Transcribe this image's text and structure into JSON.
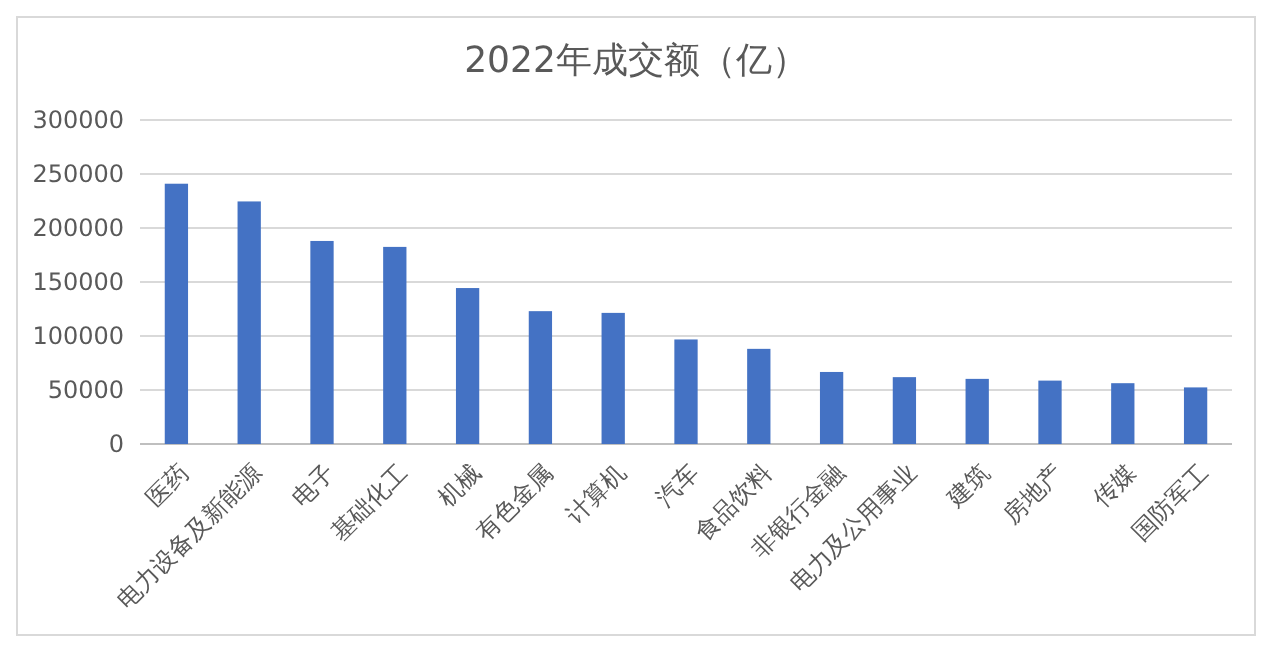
{
  "chart_data": {
    "type": "bar",
    "title": "2022年成交额（亿）",
    "categories": [
      "医药",
      "电力设备及新能源",
      "电子",
      "基础化工",
      "机械",
      "有色金属",
      "计算机",
      "汽车",
      "食品饮料",
      "非银行金融",
      "电力及公用事业",
      "建筑",
      "房地产",
      "传媒",
      "国防军工"
    ],
    "values": [
      241000,
      224600,
      188000,
      182500,
      144400,
      123000,
      121400,
      96800,
      88100,
      66700,
      61900,
      60300,
      58700,
      56300,
      52400
    ],
    "color": "#4472c4",
    "ylim": [
      0,
      300000
    ],
    "yticks": [
      0,
      50000,
      100000,
      150000,
      200000,
      250000,
      300000
    ],
    "grid": "y"
  }
}
